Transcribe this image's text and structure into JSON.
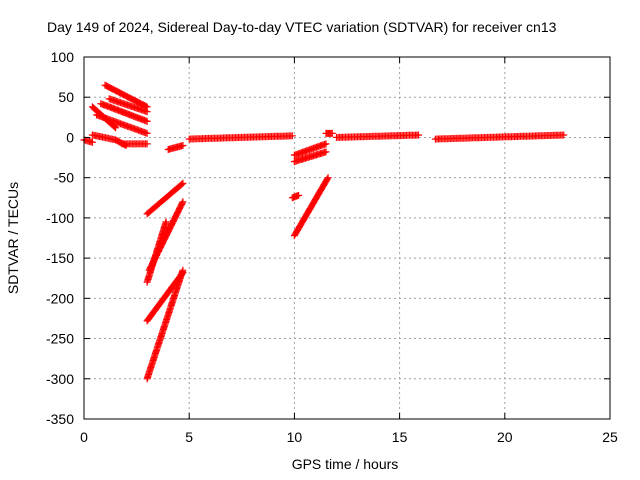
{
  "chart_data": {
    "type": "scatter",
    "title": "Day 149 of 2024, Sidereal Day-to-day VTEC variation (SDTVAR) for receiver cn13",
    "xlabel": "GPS time / hours",
    "ylabel": "SDTVAR / TECUs",
    "xlim": [
      0,
      25
    ],
    "ylim": [
      -350,
      100
    ],
    "xticks": [
      0,
      5,
      10,
      15,
      20,
      25
    ],
    "yticks": [
      100,
      50,
      0,
      -50,
      -100,
      -150,
      -200,
      -250,
      -300,
      -350
    ],
    "grid": true,
    "marker": "plus",
    "color": "#ff0000",
    "tracks": [
      {
        "x": [
          0.0,
          0.4
        ],
        "y": [
          -3,
          -6
        ]
      },
      {
        "x": [
          0.4,
          1.5,
          2.0
        ],
        "y": [
          3,
          -3,
          -10
        ]
      },
      {
        "x": [
          1.8,
          3.0
        ],
        "y": [
          -8,
          -8
        ]
      },
      {
        "x": [
          0.4,
          1.5
        ],
        "y": [
          38,
          12
        ]
      },
      {
        "x": [
          0.6,
          3.0
        ],
        "y": [
          28,
          5
        ]
      },
      {
        "x": [
          0.8,
          3.0
        ],
        "y": [
          42,
          20
        ]
      },
      {
        "x": [
          1.0,
          3.0
        ],
        "y": [
          65,
          38
        ]
      },
      {
        "x": [
          1.2,
          3.0
        ],
        "y": [
          48,
          32
        ]
      },
      {
        "x": [
          3.0,
          4.7
        ],
        "y": [
          -95,
          -57
        ]
      },
      {
        "x": [
          3.0,
          3.9
        ],
        "y": [
          -180,
          -105
        ]
      },
      {
        "x": [
          3.1,
          4.7
        ],
        "y": [
          -165,
          -80
        ]
      },
      {
        "x": [
          3.0,
          4.7
        ],
        "y": [
          -228,
          -168
        ]
      },
      {
        "x": [
          3.0,
          4.7
        ],
        "y": [
          -300,
          -165
        ]
      },
      {
        "x": [
          4.0,
          4.7
        ],
        "y": [
          -15,
          -10
        ]
      },
      {
        "x": [
          5.0,
          9.9
        ],
        "y": [
          -2,
          2
        ]
      },
      {
        "x": [
          9.9,
          10.2
        ],
        "y": [
          -75,
          -72
        ]
      },
      {
        "x": [
          10.0,
          11.6
        ],
        "y": [
          -122,
          -50
        ]
      },
      {
        "x": [
          10.0,
          11.5
        ],
        "y": [
          -30,
          -18
        ]
      },
      {
        "x": [
          10.0,
          11.5
        ],
        "y": [
          -22,
          -8
        ]
      },
      {
        "x": [
          11.5,
          11.8
        ],
        "y": [
          5,
          5
        ]
      },
      {
        "x": [
          12.0,
          15.9
        ],
        "y": [
          0,
          3
        ]
      },
      {
        "x": [
          16.7,
          22.8
        ],
        "y": [
          -2,
          3
        ]
      }
    ]
  }
}
